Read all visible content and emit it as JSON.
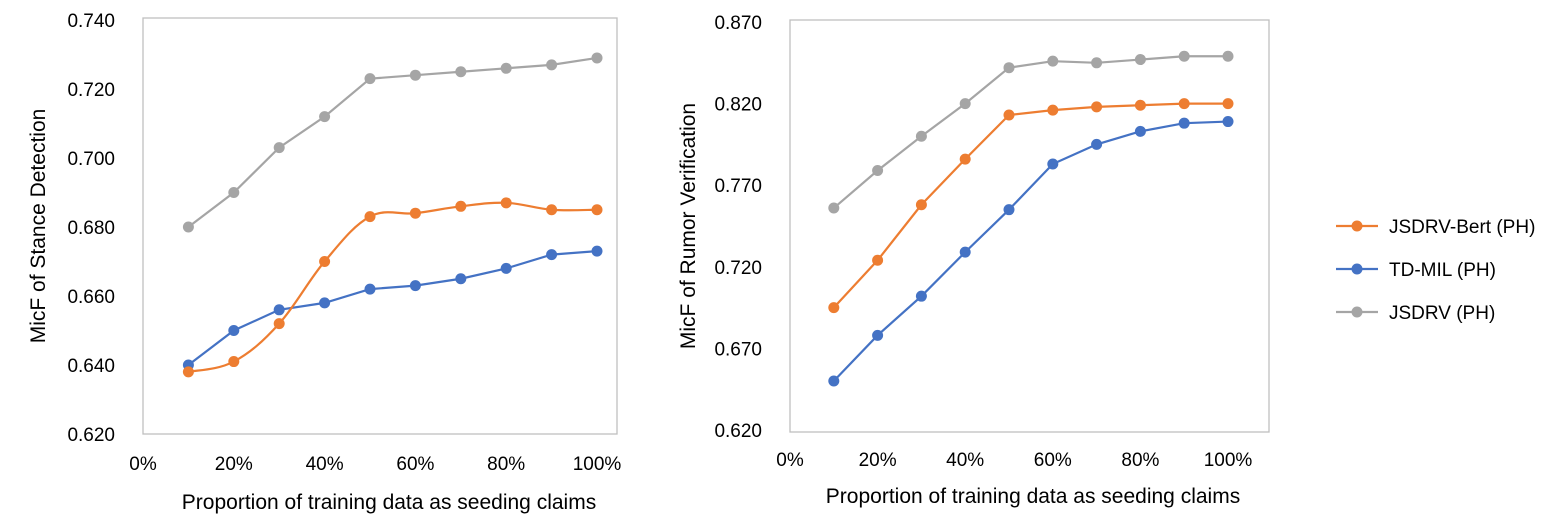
{
  "colors": {
    "jsdrv_bert": "#ED7D31",
    "td_mil": "#4472C4",
    "jsdrv": "#A5A5A5",
    "frame": "#BFBFBF"
  },
  "legend": [
    "JSDRV-Bert (PH)",
    "TD-MIL (PH)",
    "JSDRV (PH)"
  ],
  "chart_data": [
    {
      "type": "line",
      "xlabel": "Proportion of training data as seeding claims",
      "ylabel": "MicF of Stance Detection",
      "x_ticks": [
        "0%",
        "20%",
        "40%",
        "60%",
        "80%",
        "100%"
      ],
      "y_ticks": [
        "0.620",
        "0.640",
        "0.660",
        "0.680",
        "0.700",
        "0.720",
        "0.740"
      ],
      "xlim": [
        0,
        100
      ],
      "ylim": [
        0.62,
        0.74
      ],
      "x": [
        10,
        20,
        30,
        40,
        50,
        60,
        70,
        80,
        90,
        100
      ],
      "series": [
        {
          "name": "JSDRV-Bert (PH)",
          "color": "#ED7D31",
          "smooth": true,
          "values": [
            0.638,
            0.641,
            0.652,
            0.67,
            0.683,
            0.684,
            0.686,
            0.687,
            0.685,
            0.685
          ]
        },
        {
          "name": "TD-MIL (PH)",
          "color": "#4472C4",
          "smooth": false,
          "values": [
            0.64,
            0.65,
            0.656,
            0.658,
            0.662,
            0.663,
            0.665,
            0.668,
            0.672,
            0.673
          ]
        },
        {
          "name": "JSDRV (PH)",
          "color": "#A5A5A5",
          "smooth": false,
          "values": [
            0.68,
            0.69,
            0.703,
            0.712,
            0.723,
            0.724,
            0.725,
            0.726,
            0.727,
            0.729
          ]
        }
      ]
    },
    {
      "type": "line",
      "xlabel": "Proportion of training data as seeding claims",
      "ylabel": "MicF of Rumor Verification",
      "x_ticks": [
        "0%",
        "20%",
        "40%",
        "60%",
        "80%",
        "100%"
      ],
      "y_ticks": [
        "0.620",
        "0.670",
        "0.720",
        "0.770",
        "0.820",
        "0.870"
      ],
      "xlim": [
        0,
        100
      ],
      "ylim": [
        0.62,
        0.87
      ],
      "x": [
        10,
        20,
        30,
        40,
        50,
        60,
        70,
        80,
        90,
        100
      ],
      "series": [
        {
          "name": "JSDRV-Bert (PH)",
          "color": "#ED7D31",
          "smooth": false,
          "values": [
            0.695,
            0.724,
            0.758,
            0.786,
            0.813,
            0.816,
            0.818,
            0.819,
            0.82,
            0.82
          ]
        },
        {
          "name": "TD-MIL (PH)",
          "color": "#4472C4",
          "smooth": false,
          "values": [
            0.65,
            0.678,
            0.702,
            0.729,
            0.755,
            0.783,
            0.795,
            0.803,
            0.808,
            0.809
          ]
        },
        {
          "name": "JSDRV (PH)",
          "color": "#A5A5A5",
          "smooth": false,
          "values": [
            0.756,
            0.779,
            0.8,
            0.82,
            0.842,
            0.846,
            0.845,
            0.847,
            0.849,
            0.849
          ]
        }
      ]
    }
  ]
}
